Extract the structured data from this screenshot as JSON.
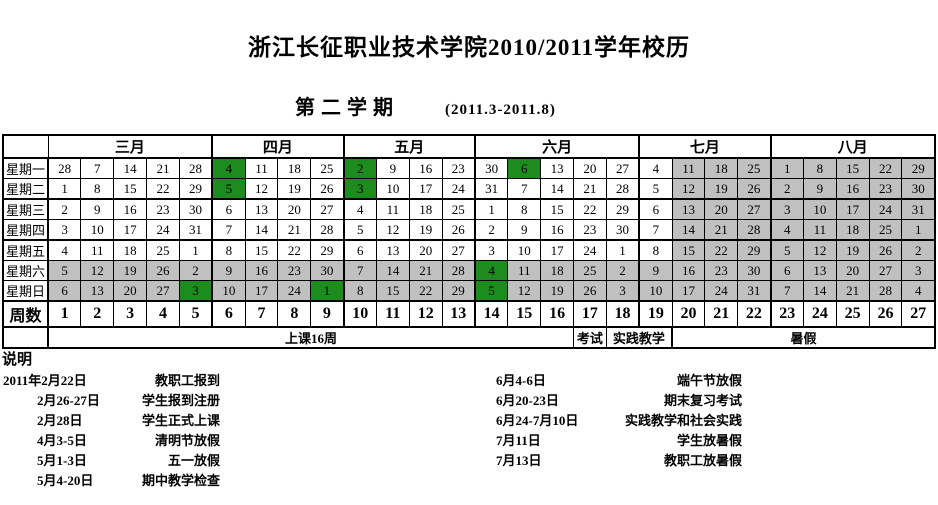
{
  "title": "浙江长征职业技术学院2010/2011学年校历",
  "subtitle": {
    "semester": "第二学期",
    "range": "(2011.3-2011.8)"
  },
  "colors": {
    "holiday_green": "#1e8b1e",
    "weekend_gray": "#c0c0c0",
    "border_black": "#000000"
  },
  "calendar": {
    "months": [
      {
        "label": "三月",
        "span": 5
      },
      {
        "label": "四月",
        "span": 4
      },
      {
        "label": "五月",
        "span": 4
      },
      {
        "label": "六月",
        "span": 5
      },
      {
        "label": "七月",
        "span": 4
      },
      {
        "label": "八月",
        "span": 5
      }
    ],
    "month_boundary_weeks": [
      5,
      9,
      13,
      18,
      22
    ],
    "day_rows": [
      {
        "label": "星期一",
        "values": [
          28,
          7,
          14,
          21,
          28,
          4,
          11,
          18,
          25,
          2,
          9,
          16,
          23,
          30,
          6,
          13,
          20,
          27,
          4,
          11,
          18,
          25,
          1,
          8,
          15,
          22,
          29
        ],
        "colors": "wwwwwGwwwGwwwwGwwwwgggggggg"
      },
      {
        "label": "星期二",
        "values": [
          1,
          8,
          15,
          22,
          29,
          5,
          12,
          19,
          26,
          3,
          10,
          17,
          24,
          31,
          7,
          14,
          21,
          28,
          5,
          12,
          19,
          26,
          2,
          9,
          16,
          23,
          30
        ],
        "colors": "wwwwwGwwwGwwwwwwwwwgggggggg"
      },
      {
        "label": "星期三",
        "values": [
          2,
          9,
          16,
          23,
          30,
          6,
          13,
          20,
          27,
          4,
          11,
          18,
          25,
          1,
          8,
          15,
          22,
          29,
          6,
          13,
          20,
          27,
          3,
          10,
          17,
          24,
          31
        ],
        "colors": "wwwwwwwwwwwwwwwwwwwgggggggg"
      },
      {
        "label": "星期四",
        "values": [
          3,
          10,
          17,
          24,
          31,
          7,
          14,
          21,
          28,
          5,
          12,
          19,
          26,
          2,
          9,
          16,
          23,
          30,
          7,
          14,
          21,
          28,
          4,
          11,
          18,
          25,
          1
        ],
        "colors": "wwwwwwwwwwwwwwwwwwwgggggggg"
      },
      {
        "label": "星期五",
        "values": [
          4,
          11,
          18,
          25,
          1,
          8,
          15,
          22,
          29,
          6,
          13,
          20,
          27,
          3,
          10,
          17,
          24,
          1,
          8,
          15,
          22,
          29,
          5,
          12,
          19,
          26,
          2
        ],
        "colors": "wwwwwwwwwwwwwwwwwwwgggggggg"
      },
      {
        "label": "星期六",
        "values": [
          5,
          12,
          19,
          26,
          2,
          9,
          16,
          23,
          30,
          7,
          14,
          21,
          28,
          4,
          11,
          18,
          25,
          2,
          9,
          16,
          23,
          30,
          6,
          13,
          20,
          27,
          3
        ],
        "colors": "gggggggggggggGggggggggggggg"
      },
      {
        "label": "星期日",
        "values": [
          6,
          13,
          20,
          27,
          3,
          10,
          17,
          24,
          1,
          8,
          15,
          22,
          29,
          5,
          12,
          19,
          26,
          3,
          10,
          17,
          24,
          31,
          7,
          14,
          21,
          28,
          4
        ],
        "colors": "ggggGgggGggggGggggggggggggg"
      }
    ],
    "week_row": {
      "label": "周数",
      "values": [
        1,
        2,
        3,
        4,
        5,
        6,
        7,
        8,
        9,
        10,
        11,
        12,
        13,
        14,
        15,
        16,
        17,
        18,
        19,
        20,
        21,
        22,
        23,
        24,
        25,
        26,
        27
      ]
    },
    "sections": [
      {
        "label": "上课16周",
        "span": 16
      },
      {
        "label": "考试",
        "span": 1
      },
      {
        "label": "实践教学",
        "span": 2
      },
      {
        "label": "暑假",
        "span": 8
      }
    ]
  },
  "notes": {
    "title": "说明",
    "left": [
      {
        "date": "2011年2月22日",
        "event": "教职工报到"
      },
      {
        "date": "2月26-27日",
        "event": "学生报到注册"
      },
      {
        "date": "2月28日",
        "event": "学生正式上课"
      },
      {
        "date": "4月3-5日",
        "event": "清明节放假"
      },
      {
        "date": "5月1-3日",
        "event": "五一放假"
      },
      {
        "date": "5月4-20日",
        "event": "期中教学检查"
      }
    ],
    "right": [
      {
        "date": "6月4-6日",
        "event": "端午节放假"
      },
      {
        "date": "6月20-23日",
        "event": "期末复习考试"
      },
      {
        "date": "6月24-7月10日",
        "event": "实践教学和社会实践"
      },
      {
        "date": "7月11日",
        "event": "学生放暑假"
      },
      {
        "date": "7月13日",
        "event": "教职工放暑假"
      }
    ]
  }
}
